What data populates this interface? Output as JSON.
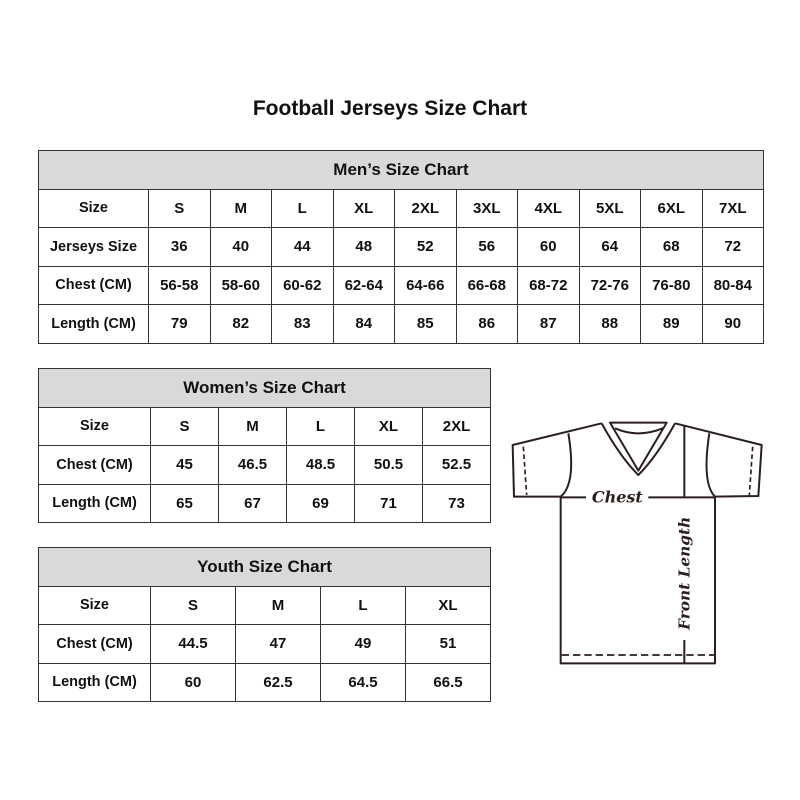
{
  "title": "Football Jerseys Size Chart",
  "tables": [
    {
      "id": "men",
      "heading": "Men’s Size Chart",
      "rows": [
        [
          "Size",
          "S",
          "M",
          "L",
          "XL",
          "2XL",
          "3XL",
          "4XL",
          "5XL",
          "6XL",
          "7XL"
        ],
        [
          "Jerseys Size",
          "36",
          "40",
          "44",
          "48",
          "52",
          "56",
          "60",
          "64",
          "68",
          "72"
        ],
        [
          "Chest (CM)",
          "56-58",
          "58-60",
          "60-62",
          "62-64",
          "64-66",
          "66-68",
          "68-72",
          "72-76",
          "76-80",
          "80-84"
        ],
        [
          "Length (CM)",
          "79",
          "82",
          "83",
          "84",
          "85",
          "86",
          "87",
          "88",
          "89",
          "90"
        ]
      ]
    },
    {
      "id": "women",
      "heading": "Women’s Size Chart",
      "rows": [
        [
          "Size",
          "S",
          "M",
          "L",
          "XL",
          "2XL"
        ],
        [
          "Chest (CM)",
          "45",
          "46.5",
          "48.5",
          "50.5",
          "52.5"
        ],
        [
          "Length (CM)",
          "65",
          "67",
          "69",
          "71",
          "73"
        ]
      ]
    },
    {
      "id": "youth",
      "heading": "Youth Size Chart",
      "rows": [
        [
          "Size",
          "S",
          "M",
          "L",
          "XL"
        ],
        [
          "Chest (CM)",
          "44.5",
          "47",
          "49",
          "51"
        ],
        [
          "Length (CM)",
          "60",
          "62.5",
          "64.5",
          "66.5"
        ]
      ]
    }
  ],
  "diagram": {
    "chest_label": "Chest",
    "length_label": "Front Length"
  },
  "colors": {
    "header_bg": "#d9d9d9",
    "border": "#333333"
  }
}
